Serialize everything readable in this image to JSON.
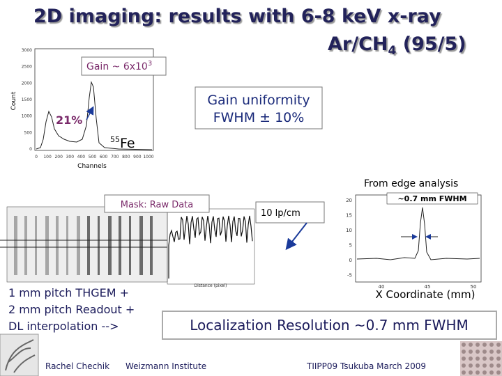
{
  "title": {
    "line1": "2D imaging: results with 6-8 keV x-ray",
    "line2": {
      "text": "Ar/CH",
      "sub": "4",
      "rest": " (95/5)"
    }
  },
  "spectrum": {
    "gain": {
      "text": "Gain ~ 6x10",
      "sup": "3"
    },
    "resolution": "21%",
    "source": {
      "sup": "55",
      "text": "Fe"
    },
    "y_label": "Count",
    "x_label": "Channels",
    "yticks": [
      "3000",
      "2500",
      "2000",
      "1500",
      "1000",
      "500",
      "0"
    ],
    "xticks": [
      "0",
      "100",
      "200",
      "300",
      "400",
      "500",
      "600",
      "700",
      "800",
      "900",
      "1000"
    ]
  },
  "uniformity": [
    "Gain uniformity",
    "FWHM ± 10%"
  ],
  "edge": {
    "caption": "From edge analysis",
    "fwhm": "~0.7 mm FWHM",
    "x_label": "X Coordinate (mm)",
    "yticks": [
      "20",
      "15",
      "10",
      "5",
      "0",
      "-5"
    ],
    "xticks": [
      "40",
      "45",
      "50"
    ]
  },
  "mask": {
    "label": "Mask: Raw Data",
    "profile_x_label": "Distance (pixel)",
    "lp": "10 lp/cm"
  },
  "notes": [
    "1 mm pitch THGEM +",
    "2 mm pitch Readout +",
    "DL interpolation -->"
  ],
  "result": "Localization Resolution ~0.7 mm FWHM",
  "footer": {
    "author": "Rachel Chechik",
    "institute": "Weizmann Institute",
    "event": "TIIPP09 Tsukuba March 2009"
  }
}
